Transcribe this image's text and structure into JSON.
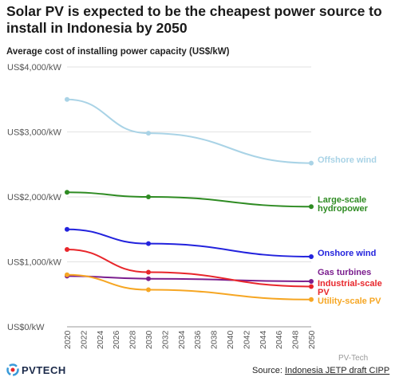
{
  "header": {
    "title": "Solar PV is expected to be the cheapest power source to install in Indonesia by 2050",
    "subtitle": "Average cost of installing power capacity (US$/kW)"
  },
  "footer": {
    "logo_text": "PVTECH",
    "watermark": "PV-Tech",
    "source_prefix": "Source: ",
    "source_link": "Indonesia JETP draft CIPP"
  },
  "chart_data": {
    "type": "line",
    "ylim": [
      0,
      4000
    ],
    "y_ticks": [
      "US$4,000/kW",
      "US$3,000/kW",
      "US$2,000/kW",
      "US$1,000/kW",
      "US$0/kW"
    ],
    "y_tick_values": [
      4000,
      3000,
      2000,
      1000,
      0
    ],
    "x_ticks": [
      "2020",
      "2022",
      "2024",
      "2026",
      "2028",
      "2030",
      "2032",
      "2034",
      "2036",
      "2038",
      "2040",
      "2042",
      "2044",
      "2046",
      "2048",
      "2050"
    ],
    "xlim": [
      2020,
      2050
    ],
    "grid": "horizontal",
    "series": [
      {
        "name": "Offshore wind",
        "color": "#a9d3e6",
        "x": [
          2020,
          2030,
          2050
        ],
        "values": [
          3500,
          2980,
          2520
        ],
        "label_lines": [
          "Offshore wind"
        ]
      },
      {
        "name": "Large-scale hydropower",
        "color": "#2e8b22",
        "x": [
          2020,
          2030,
          2050
        ],
        "values": [
          2070,
          2000,
          1850
        ],
        "label_lines": [
          "Large-scale",
          "hydropower"
        ]
      },
      {
        "name": "Onshore wind",
        "color": "#2222dd",
        "x": [
          2020,
          2030,
          2050
        ],
        "values": [
          1500,
          1280,
          1080
        ],
        "label_lines": [
          "Onshore wind"
        ]
      },
      {
        "name": "Gas turbines",
        "color": "#7b1e8e",
        "x": [
          2020,
          2030,
          2050
        ],
        "values": [
          780,
          740,
          700
        ],
        "label_lines": [
          "Gas turbines"
        ]
      },
      {
        "name": "Industrial-scale PV",
        "color": "#e8262b",
        "x": [
          2020,
          2030,
          2050
        ],
        "values": [
          1190,
          840,
          620
        ],
        "label_lines": [
          "Industrial-scale",
          "PV"
        ]
      },
      {
        "name": "Utility-scale PV",
        "color": "#f6a623",
        "x": [
          2020,
          2030,
          2050
        ],
        "values": [
          800,
          570,
          420
        ],
        "label_lines": [
          "Utility-scale PV"
        ]
      }
    ]
  }
}
